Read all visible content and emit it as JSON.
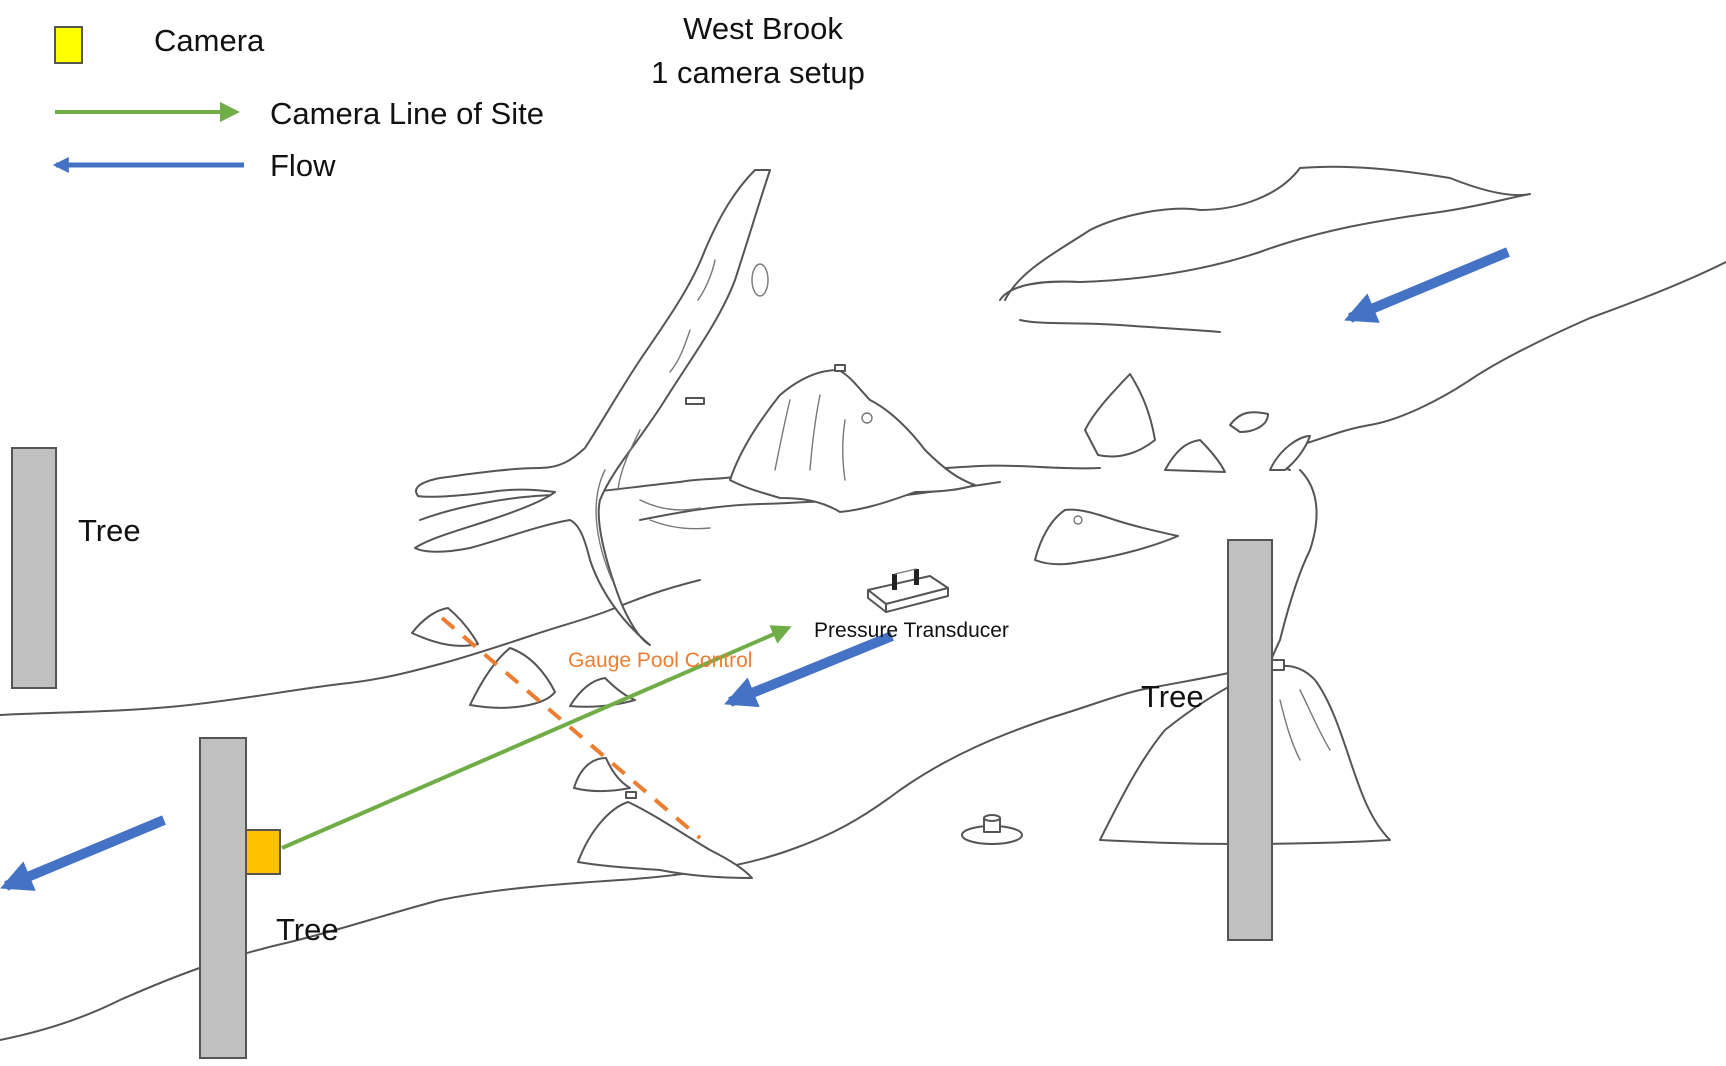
{
  "title": {
    "line1": "West Brook",
    "line2": "1  camera setup"
  },
  "legend": {
    "camera": "Camera",
    "line_of_site": "Camera Line of Site",
    "flow": "Flow"
  },
  "labels": {
    "tree_left_upper": "Tree",
    "tree_left_lower": "Tree",
    "tree_right": "Tree",
    "pressure_transducer": "Pressure Transducer",
    "gauge_pool_control": "Gauge Pool Control"
  },
  "colors": {
    "camera_legend": "#ffff00",
    "camera_mounted": "#ffc000",
    "line_of_site": "#70ad47",
    "flow": "#4472c4",
    "gauge_pool_control": "#ed7d31",
    "tree": "#c0c0c0"
  }
}
